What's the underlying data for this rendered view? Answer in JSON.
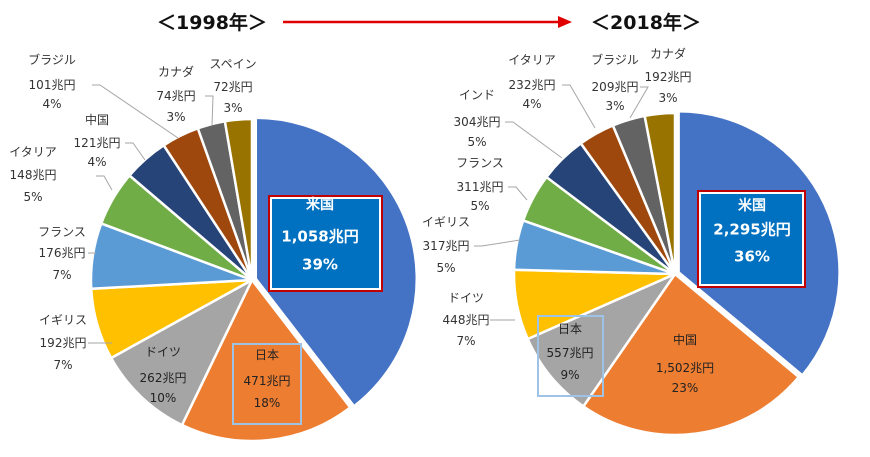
{
  "header": {
    "left_title": "＜1998年＞",
    "right_title": "＜2018年＞",
    "arrow_color": "#e00000"
  },
  "chart_data": [
    {
      "type": "pie",
      "title": "＜1998年＞",
      "categories": [
        "米国",
        "日本",
        "ドイツ",
        "イギリス",
        "フランス",
        "イタリア",
        "中国",
        "ブラジル",
        "カナダ",
        "スペイン"
      ],
      "values": [
        1058,
        471,
        262,
        192,
        176,
        148,
        121,
        101,
        74,
        72
      ],
      "value_labels": [
        "1,058兆円",
        "471兆円",
        "262兆円",
        "192兆円",
        "176兆円",
        "148兆円",
        "121兆円",
        "101兆円",
        "74兆円",
        "72兆円"
      ],
      "percent_labels": [
        "39%",
        "18%",
        "10%",
        "7%",
        "7%",
        "5%",
        "4%",
        "4%",
        "3%",
        "3%"
      ],
      "colors": [
        "#4472c4",
        "#ed7d31",
        "#a5a5a5",
        "#ffc000",
        "#5b9bd5",
        "#70ad47",
        "#264478",
        "#9e480e",
        "#636363",
        "#997300"
      ],
      "highlight": {
        "米国": "#c00000",
        "日本": "#9dc3e6"
      }
    },
    {
      "type": "pie",
      "title": "＜2018年＞",
      "categories": [
        "米国",
        "中国",
        "日本",
        "ドイツ",
        "イギリス",
        "フランス",
        "インド",
        "イタリア",
        "ブラジル",
        "カナダ"
      ],
      "values": [
        2295,
        1502,
        557,
        448,
        317,
        311,
        304,
        232,
        209,
        192
      ],
      "value_labels": [
        "2,295兆円",
        "1,502兆円",
        "557兆円",
        "448兆円",
        "317兆円",
        "311兆円",
        "304兆円",
        "232兆円",
        "209兆円",
        "192兆円"
      ],
      "percent_labels": [
        "36%",
        "23%",
        "9%",
        "7%",
        "5%",
        "5%",
        "5%",
        "4%",
        "3%",
        "3%"
      ],
      "colors": [
        "#4472c4",
        "#ed7d31",
        "#a5a5a5",
        "#ffc000",
        "#5b9bd5",
        "#70ad47",
        "#264478",
        "#9e480e",
        "#636363",
        "#997300"
      ],
      "highlight": {
        "米国": "#c00000",
        "日本": "#9dc3e6"
      }
    }
  ]
}
